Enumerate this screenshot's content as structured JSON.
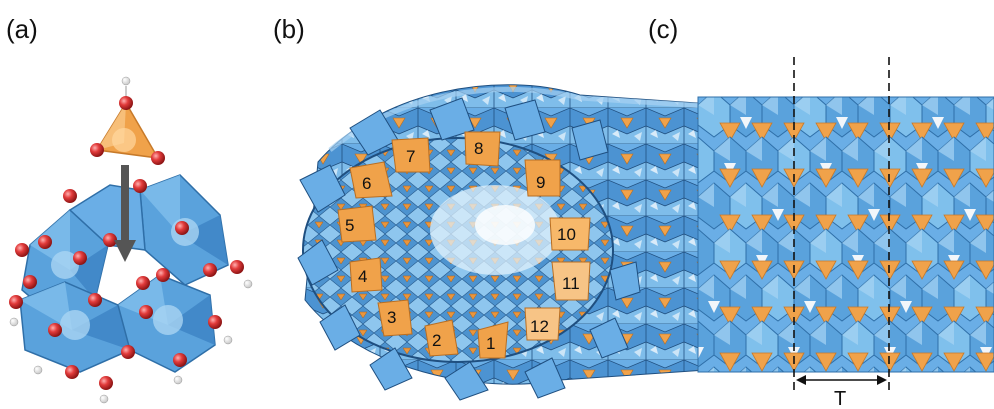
{
  "panels": [
    {
      "label": "(a)"
    },
    {
      "label": "(b)"
    },
    {
      "label": "(c)"
    }
  ],
  "ring_numbers": [
    "1",
    "2",
    "3",
    "4",
    "5",
    "6",
    "7",
    "8",
    "9",
    "10",
    "11",
    "12"
  ],
  "period_label": "T",
  "colors": {
    "octahedron": "#5aa2dc",
    "octahedron_dark": "#2f6fa8",
    "tetrahedron": "#f0a24a",
    "tetrahedron_dark": "#c77a2a",
    "oxygen": "#e23b3b",
    "hydrogen": "#f4f4f4",
    "arrow": "#555555"
  }
}
